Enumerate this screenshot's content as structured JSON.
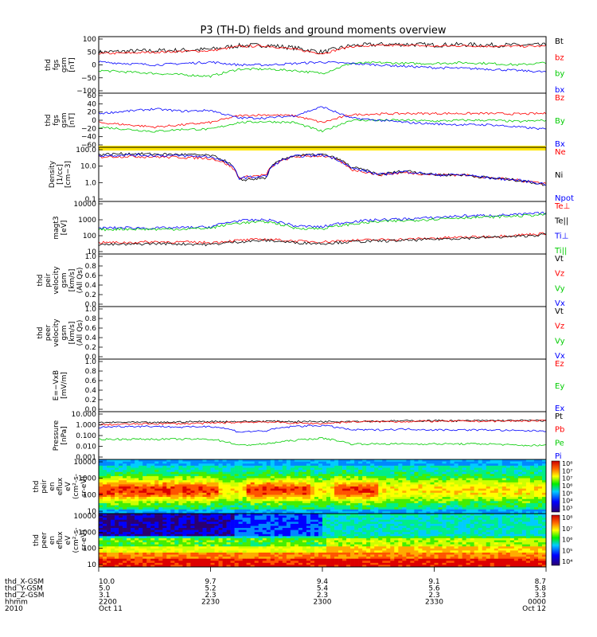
{
  "title": "P3 (TH-D) fields and ground moments overview",
  "x_ticks": [
    "2200",
    "2230",
    "2300",
    "2330",
    "0000"
  ],
  "ephemeris": {
    "row_labels": [
      "thd_X-GSM",
      "thd_Y-GSM",
      "thd_Z-GSM",
      "hhmm",
      "2010"
    ],
    "columns": [
      {
        "x": "10.0",
        "y": "5.0",
        "z": "3.1",
        "hhmm": "2200",
        "date": "Oct 11"
      },
      {
        "x": "9.7",
        "y": "5.2",
        "z": "2.3",
        "hhmm": "2230",
        "date": ""
      },
      {
        "x": "9.4",
        "y": "5.4",
        "z": "2.3",
        "hhmm": "2300",
        "date": ""
      },
      {
        "x": "9.1",
        "y": "5.6",
        "z": "2.3",
        "hhmm": "2330",
        "date": ""
      },
      {
        "x": "8.7",
        "y": "5.8",
        "z": "3.3",
        "hhmm": "0000",
        "date": "Oct 12"
      }
    ]
  },
  "colorbar_labels": {
    "ions": [
      "10⁸",
      "10⁷",
      "10⁷",
      "10⁶",
      "10⁵",
      "10⁴",
      "10³"
    ],
    "electrons": [
      "10⁸",
      "10⁷",
      "10⁶",
      "10⁵",
      "10⁴"
    ]
  },
  "chart_data": [
    {
      "type": "line",
      "panel": 1,
      "ylabel": [
        "thd",
        "fgs",
        "gsm",
        "[nT]"
      ],
      "yticks": [
        "100",
        "50",
        "0",
        "−50",
        "−100"
      ],
      "ylim": [
        -100,
        100
      ],
      "series": [
        {
          "name": "Bt",
          "color": "#000000",
          "values": [
            45,
            48,
            50,
            52,
            55,
            68,
            70,
            60,
            45,
            68,
            72,
            73,
            70,
            72,
            70,
            70,
            70
          ]
        },
        {
          "name": "bz",
          "color": "#ff0000",
          "values": [
            40,
            42,
            45,
            48,
            50,
            65,
            67,
            55,
            40,
            65,
            68,
            70,
            66,
            68,
            66,
            66,
            66
          ]
        },
        {
          "name": "by",
          "color": "#00cc00",
          "values": [
            -20,
            -25,
            -30,
            -35,
            -40,
            -15,
            -15,
            -20,
            -30,
            5,
            8,
            5,
            5,
            8,
            5,
            0,
            8
          ]
        },
        {
          "name": "bx",
          "color": "#0000ff",
          "values": [
            10,
            5,
            0,
            5,
            10,
            0,
            0,
            5,
            10,
            5,
            0,
            -5,
            -10,
            -12,
            -15,
            -20,
            -25
          ]
        }
      ]
    },
    {
      "type": "line",
      "panel": 2,
      "ylabel": [
        "thd",
        "fgs",
        "gsm",
        "[nT]"
      ],
      "yticks": [
        "60",
        "40",
        "20",
        "0",
        "−20",
        "−40",
        "−60"
      ],
      "ylim": [
        -60,
        60
      ],
      "series": [
        {
          "name": "Bz",
          "color": "#ff0000",
          "values": [
            -5,
            -10,
            -15,
            -10,
            -5,
            10,
            12,
            10,
            -5,
            12,
            14,
            15,
            15,
            15,
            15,
            14,
            15
          ]
        },
        {
          "name": "By",
          "color": "#00cc00",
          "values": [
            -15,
            -20,
            -25,
            -20,
            -20,
            -5,
            -3,
            -5,
            -25,
            0,
            0,
            0,
            -2,
            0,
            0,
            -3,
            0
          ]
        },
        {
          "name": "Bx",
          "color": "#0000ff",
          "values": [
            15,
            20,
            25,
            20,
            22,
            5,
            5,
            10,
            30,
            5,
            0,
            -5,
            -8,
            -10,
            -10,
            -15,
            -20
          ]
        }
      ]
    },
    {
      "type": "line",
      "panel": 3,
      "yscale": "log",
      "ylabel": [
        "Density",
        "[1/cc]",
        "[cm−3]"
      ],
      "yticks": [
        "100.0",
        "10.0",
        "1.0",
        "0.1"
      ],
      "ylim": [
        0.1,
        100
      ],
      "series": [
        {
          "name": "Ne",
          "color": "#ff0000",
          "values": [
            30,
            32,
            30,
            28,
            25,
            2,
            3,
            30,
            35,
            6,
            3,
            4,
            3,
            3,
            2,
            1.5,
            1
          ]
        },
        {
          "name": "Ni",
          "color": "#000000",
          "values": [
            40,
            45,
            42,
            40,
            35,
            1.5,
            2,
            35,
            40,
            8,
            3,
            5,
            3,
            3,
            2,
            1.5,
            0.8
          ]
        },
        {
          "name": "Npot",
          "color": "#0000ff",
          "values": [
            35,
            38,
            36,
            34,
            30,
            2,
            2.5,
            32,
            38,
            7,
            3,
            4.5,
            3,
            3,
            2,
            1.5,
            0.9
          ]
        }
      ]
    },
    {
      "type": "line",
      "panel": 4,
      "yscale": "log",
      "ylabel": [
        "magt3",
        "[eV]"
      ],
      "yticks": [
        "10000",
        "1000",
        "100",
        "10"
      ],
      "ylim": [
        10,
        10000
      ],
      "series": [
        {
          "name": "Te⊥",
          "color": "#ff0000",
          "values": [
            45,
            45,
            50,
            48,
            45,
            60,
            70,
            55,
            50,
            60,
            65,
            70,
            80,
            90,
            100,
            120,
            150
          ]
        },
        {
          "name": "Te||",
          "color": "#000000",
          "values": [
            35,
            35,
            40,
            38,
            35,
            50,
            60,
            45,
            40,
            50,
            55,
            60,
            70,
            80,
            90,
            100,
            130
          ]
        },
        {
          "name": "Ti⊥",
          "color": "#0000ff",
          "values": [
            300,
            320,
            300,
            320,
            350,
            800,
            900,
            400,
            350,
            700,
            900,
            1000,
            1200,
            1500,
            1600,
            1800,
            2200
          ]
        },
        {
          "name": "Ti||",
          "color": "#00cc00",
          "values": [
            250,
            270,
            260,
            270,
            300,
            600,
            700,
            300,
            280,
            500,
            700,
            800,
            1000,
            1200,
            1300,
            1500,
            1800
          ]
        }
      ]
    },
    {
      "type": "line",
      "panel": 5,
      "ylabel": [
        "thd",
        "peir",
        "velocity",
        "gsm",
        "[km/s]",
        "(All Qs)"
      ],
      "yticks": [
        "1.0",
        "0.8",
        "0.6",
        "0.4",
        "0.2",
        "0.0"
      ],
      "ylim": [
        0,
        1
      ],
      "series": [
        {
          "name": "Vt",
          "color": "#000000",
          "values": []
        },
        {
          "name": "Vz",
          "color": "#ff0000",
          "values": []
        },
        {
          "name": "Vy",
          "color": "#00cc00",
          "values": []
        },
        {
          "name": "Vx",
          "color": "#0000ff",
          "values": []
        }
      ]
    },
    {
      "type": "line",
      "panel": 6,
      "ylabel": [
        "thd",
        "peer",
        "velocity",
        "gsm",
        "[km/s]",
        "(All Qs)"
      ],
      "yticks": [
        "1.0",
        "0.8",
        "0.6",
        "0.4",
        "0.2",
        "0.0"
      ],
      "ylim": [
        0,
        1
      ],
      "series": [
        {
          "name": "Vt",
          "color": "#000000",
          "values": []
        },
        {
          "name": "Vz",
          "color": "#ff0000",
          "values": []
        },
        {
          "name": "Vy",
          "color": "#00cc00",
          "values": []
        },
        {
          "name": "Vx",
          "color": "#0000ff",
          "values": []
        }
      ]
    },
    {
      "type": "line",
      "panel": 7,
      "ylabel": [
        "E=−VxB",
        "[mV/m]"
      ],
      "yticks": [
        "1.0",
        "0.8",
        "0.6",
        "0.4",
        "0.2",
        "0.0"
      ],
      "ylim": [
        0,
        1
      ],
      "series": [
        {
          "name": "Ez",
          "color": "#ff0000",
          "values": []
        },
        {
          "name": "Ey",
          "color": "#00cc00",
          "values": []
        },
        {
          "name": "Ex",
          "color": "#0000ff",
          "values": []
        }
      ]
    },
    {
      "type": "line",
      "panel": 8,
      "yscale": "log",
      "ylabel": [
        "Pressure",
        "[nPa]"
      ],
      "yticks": [
        "10.000",
        "1.000",
        "0.100",
        "0.010",
        "0.001"
      ],
      "ylim": [
        0.001,
        10
      ],
      "series": [
        {
          "name": "Pt",
          "color": "#000000",
          "values": [
            1.2,
            1.3,
            1.2,
            1.4,
            1.5,
            1.5,
            1.6,
            1.5,
            1.5,
            1.6,
            1.6,
            1.7,
            1.8,
            1.7,
            1.8,
            1.8,
            1.8
          ]
        },
        {
          "name": "Pb",
          "color": "#ff0000",
          "values": [
            0.8,
            0.9,
            1.0,
            1.0,
            1.1,
            1.3,
            1.4,
            1.1,
            1.0,
            1.4,
            1.5,
            1.5,
            1.6,
            1.6,
            1.6,
            1.7,
            1.7
          ]
        },
        {
          "name": "Pe",
          "color": "#00cc00",
          "values": [
            0.05,
            0.05,
            0.05,
            0.05,
            0.05,
            0.015,
            0.02,
            0.04,
            0.06,
            0.02,
            0.02,
            0.02,
            0.02,
            0.02,
            0.02,
            0.015,
            0.015
          ]
        },
        {
          "name": "Pi",
          "color": "#0000ff",
          "values": [
            0.5,
            0.6,
            0.6,
            0.5,
            0.6,
            0.2,
            0.25,
            0.6,
            0.7,
            0.3,
            0.3,
            0.35,
            0.3,
            0.3,
            0.3,
            0.25,
            0.25
          ]
        }
      ]
    },
    {
      "type": "heatmap",
      "panel": 9,
      "yscale": "log",
      "ylabel": [
        "thd",
        "peir",
        "en",
        "eflux",
        "eV",
        "(cm²-s-",
        "sr-eV)"
      ],
      "yticks": [
        "10000",
        "1000",
        "100",
        "10"
      ],
      "ylim": [
        10,
        10000
      ]
    },
    {
      "type": "heatmap",
      "panel": 10,
      "yscale": "log",
      "ylabel": [
        "thd",
        "peer",
        "en",
        "eflux",
        "eV",
        "(cm²-s-",
        "sr-eV)"
      ],
      "yticks": [
        "10000",
        "1000",
        "100",
        "10"
      ],
      "ylim": [
        10,
        10000
      ]
    }
  ]
}
